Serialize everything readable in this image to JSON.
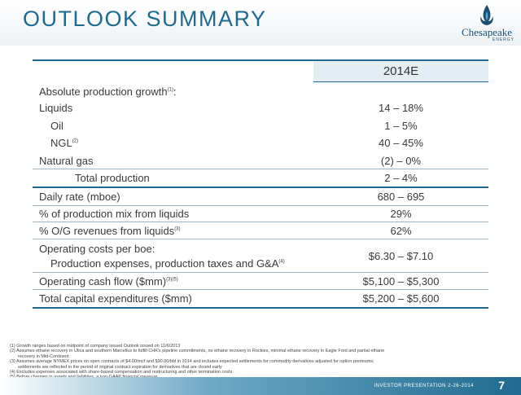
{
  "header": {
    "title": "OUTLOOK SUMMARY",
    "logo_name": "Chesapeake",
    "logo_sub": "ENERGY"
  },
  "table": {
    "column_header": "2014E",
    "rows": [
      {
        "label": "Absolute production growth",
        "sup": "(1)",
        "suffix": ":",
        "value": ""
      },
      {
        "label": "Liquids",
        "value": "14 – 18%"
      },
      {
        "label": "Oil",
        "value": "1 – 5%"
      },
      {
        "label": "NGL",
        "sup": "(2)",
        "value": "40 – 45%"
      },
      {
        "label": "Natural gas",
        "value": "(2) – 0%"
      },
      {
        "label": "Total production",
        "value": "2 – 4%"
      },
      {
        "label": "Daily rate (mboe)",
        "value": "680 – 695"
      },
      {
        "label": "% of production mix from liquids",
        "value": "29%"
      },
      {
        "label": "% O/G revenues from liquids",
        "sup": "(3)",
        "value": "62%"
      },
      {
        "label": "Operating costs per boe:",
        "label2": "Production expenses, production taxes and G&A",
        "sup": "(4)",
        "value": "$6.30 – $7.10"
      },
      {
        "label": "Operating cash flow ($mm)",
        "sup": "(3)(5)",
        "value": "$5,100 – $5,300"
      },
      {
        "label": "Total capital expenditures ($mm)",
        "value": "$5,200 – $5,600"
      }
    ]
  },
  "footnotes": [
    "(1) Growth ranges based on midpoint of company issued Outlook issued on 11/6/2013",
    "(2) Assumes ethane recovery in Utica and southern Marcellus to fulfill CHK's pipeline commitments, no ethane recovery in Rockies, minimal ethane recovery in Eagle Ford and partial ethane",
    "recovery in Mid-Continent",
    "(3) Assumes average NYMEX prices on open contracts of $4.00/mcf and $90.00/bbl in 2014 and includes expected settlements for commodity derivatives adjusted for option premiums;",
    "settlements are reflected in the period of original contract expiration for derivatives that are closed early",
    "(4) Excludes expenses associated with share-based compensation and restructuring and other termination costs",
    "(5) Before changes in assets and liabilities, a non-GAAP financial measure"
  ],
  "footer": {
    "text": "INVESTOR PRESENTATION 2-26-2014",
    "page": "7"
  }
}
